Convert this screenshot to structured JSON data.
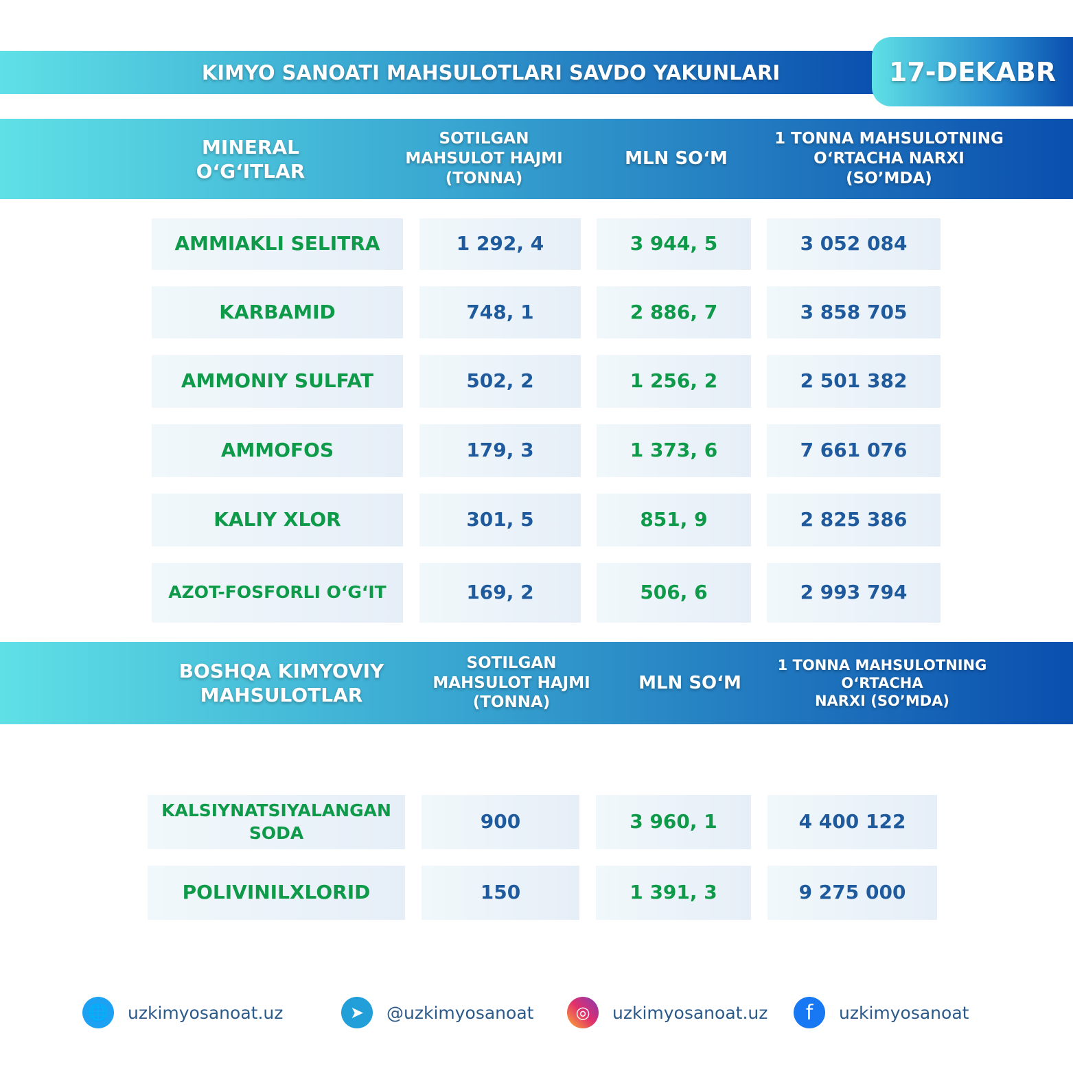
{
  "title": "KIMYO SANOATI MAHSULOTLARI SAVDO YAKUNLARI",
  "date": "17-DEKABR",
  "colors": {
    "name_text": "#0f9a4a",
    "number_text": "#1f5a9c",
    "band_start": "#5fe0e6",
    "band_end": "#0a4fae"
  },
  "table1": {
    "headers": [
      "MINERAL\nO‘G‘ITLAR",
      "SOTILGAN\nMAHSULOT HAJMI\n(TONNA)",
      "MLN SO‘M",
      "1 TONNA MAHSULOTNING\nO‘RTACHA NARXI\n(SO’MDA)"
    ],
    "rows": [
      [
        "AMMIAKLI SELITRA",
        "1 292, 4",
        "3 944, 5",
        "3 052 084"
      ],
      [
        "KARBAMID",
        "748, 1",
        "2 886, 7",
        "3 858 705"
      ],
      [
        "AMMONIY SULFAT",
        "502, 2",
        "1 256, 2",
        "2 501 382"
      ],
      [
        "AMMOFOS",
        "179, 3",
        "1 373, 6",
        "7 661 076"
      ],
      [
        "KALIY XLOR",
        "301, 5",
        "851, 9",
        "2 825 386"
      ],
      [
        "AZOT-FOSFORLI O‘G‘IT",
        "169, 2",
        "506, 6",
        "2 993 794"
      ]
    ]
  },
  "table2": {
    "headers": [
      "BOSHQA KIMYOVIY\nMAHSULOTLAR",
      "SOTILGAN\nMAHSULOT HAJMI\n(TONNA)",
      "MLN SO‘M",
      "1 TONNA MAHSULOTNING\nO‘RTACHA\nNARXI (SO’MDA)"
    ],
    "rows": [
      [
        "KALSIYNATSIYALANGAN\nSODA",
        "900",
        "3 960, 1",
        "4 400 122"
      ],
      [
        "POLIVINILXLORID",
        "150",
        "1 391, 3",
        "9 275 000"
      ]
    ]
  },
  "footer": [
    {
      "icon": "globe-icon",
      "text": "uzkimyosanoat.uz"
    },
    {
      "icon": "telegram-icon",
      "text": "@uzkimyosanoat"
    },
    {
      "icon": "instagram-icon",
      "text": "uzkimyosanoat.uz"
    },
    {
      "icon": "facebook-icon",
      "text": "uzkimyosanoat"
    }
  ]
}
